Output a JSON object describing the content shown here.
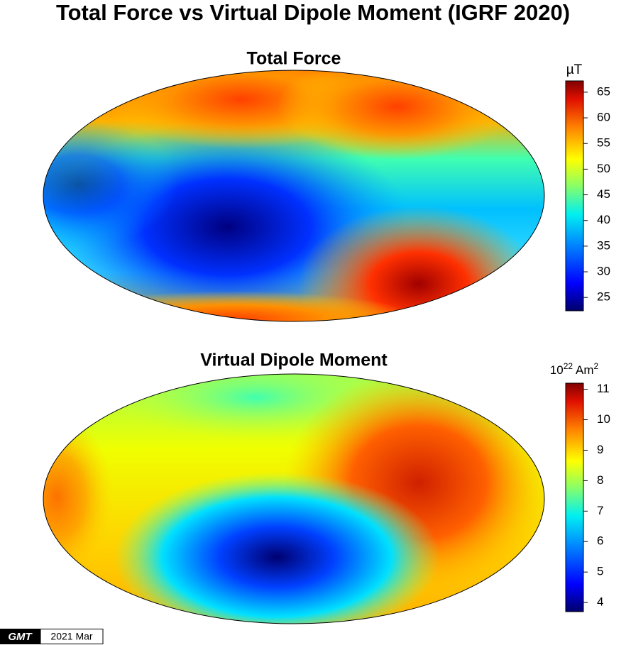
{
  "title": "Total Force vs Virtual Dipole Moment (IGRF 2020)",
  "maps": [
    {
      "title": "Total Force",
      "colorbar": {
        "unit": "µT",
        "lim": [
          22.4,
          67.2
        ],
        "ticks": [
          25,
          30,
          35,
          40,
          45,
          50,
          55,
          60,
          65
        ]
      }
    },
    {
      "title": "Virtual Dipole Moment",
      "colorbar": {
        "unit": {
          "base": "10",
          "exponent": "22",
          "unit": "Am",
          "unit_exponent": "2"
        },
        "lim": [
          3.7,
          11.2
        ],
        "ticks": [
          4,
          5,
          6,
          7,
          8,
          9,
          10,
          11
        ]
      }
    }
  ],
  "footer": {
    "logo": "GMT",
    "date": "2021 Mar"
  }
}
